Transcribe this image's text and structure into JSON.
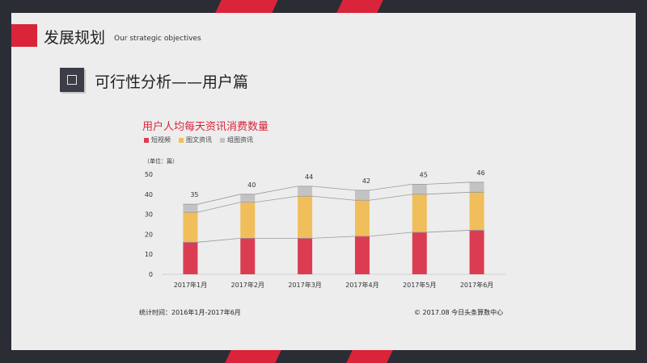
{
  "header": {
    "title": "发展规划",
    "subtitle": "Our strategic objectives"
  },
  "section": {
    "title": "可行性分析——用户篇"
  },
  "colors": {
    "accent": "#d9243a",
    "short_video": "#dc3c52",
    "image_text": "#f0be5a",
    "gallery": "#c3c3c3",
    "icon_bg": "#3b3e47"
  },
  "chart_data": {
    "type": "bar",
    "stacked": true,
    "title": "用户人均每天资讯消费数量",
    "unit_label": "（单位：篇）",
    "categories": [
      "2017年1月",
      "2017年2月",
      "2017年3月",
      "2017年4月",
      "2017年5月",
      "2017年6月"
    ],
    "series": [
      {
        "name": "短视频",
        "color": "#dc3c52",
        "values": [
          16,
          18,
          18,
          19,
          21,
          22
        ]
      },
      {
        "name": "图文资讯",
        "color": "#f0be5a",
        "values": [
          15,
          18,
          21,
          18,
          19,
          19
        ]
      },
      {
        "name": "组图资讯",
        "color": "#c3c3c3",
        "values": [
          4,
          4,
          5,
          5,
          5,
          5
        ]
      }
    ],
    "totals": [
      35,
      40,
      44,
      42,
      45,
      46
    ],
    "ylim": [
      0,
      50
    ],
    "yticks": [
      0,
      10,
      20,
      30,
      40,
      50
    ],
    "grid": false,
    "legend_position": "top-left"
  },
  "footer": {
    "left": "统计时间：2016年1月-2017年6月",
    "right": "© 2017.08 今日头条算数中心"
  }
}
